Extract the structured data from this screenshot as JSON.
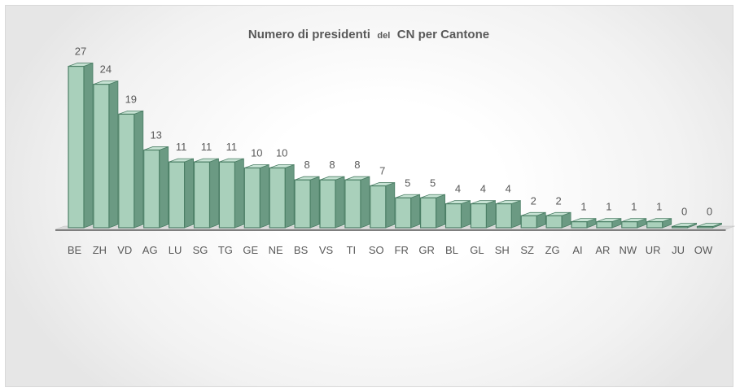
{
  "chart_data": {
    "type": "bar",
    "title": "Numero di presidenti",
    "title_small": "del",
    "title_end": "CN per Cantone",
    "categories": [
      "BE",
      "ZH",
      "VD",
      "AG",
      "LU",
      "SG",
      "TG",
      "GE",
      "NE",
      "BS",
      "VS",
      "TI",
      "SO",
      "FR",
      "GR",
      "BL",
      "GL",
      "SH",
      "SZ",
      "ZG",
      "AI",
      "AR",
      "NW",
      "UR",
      "JU",
      "OW"
    ],
    "values": [
      27,
      24,
      19,
      13,
      11,
      11,
      11,
      10,
      10,
      8,
      8,
      8,
      7,
      5,
      5,
      4,
      4,
      4,
      2,
      2,
      1,
      1,
      1,
      1,
      0,
      0
    ],
    "ylim": [
      0,
      28
    ],
    "grid": false,
    "legend": "none",
    "style": "3d-column",
    "colors": {
      "bar_front": "#a9d0bb",
      "bar_side": "#6b9a83",
      "bar_top": "#c6e2d3",
      "bar_edge": "#4c7f66"
    }
  }
}
